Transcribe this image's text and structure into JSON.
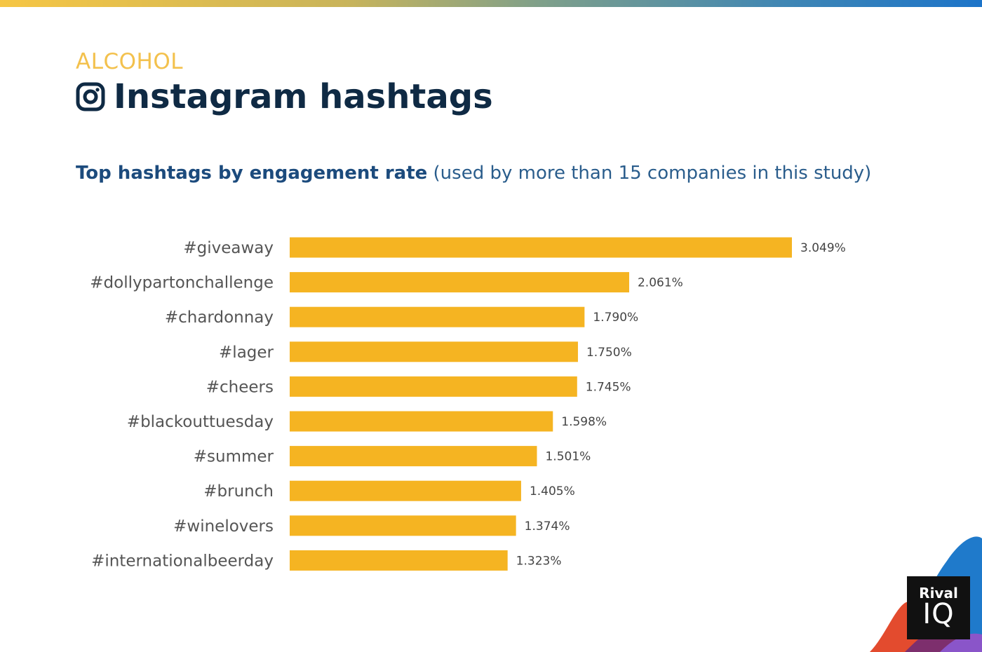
{
  "header": {
    "category": "ALCOHOL",
    "title": "Instagram hashtags",
    "subtitle_bold": "Top hashtags by engagement rate",
    "subtitle_rest": " (used by more than 15 companies in this study)"
  },
  "colors": {
    "bar": "#f5b422",
    "title": "#0f2a44",
    "category": "#f3c14d",
    "subtitle": "#1c4b7d"
  },
  "icons": {
    "title_icon": "instagram-icon"
  },
  "logo": {
    "line1": "Rival",
    "line2": "IQ"
  },
  "chart_data": {
    "type": "bar",
    "orientation": "horizontal",
    "categories": [
      "#giveaway",
      "#dollypartonchallenge",
      "#chardonnay",
      "#lager",
      "#cheers",
      "#blackouttuesday",
      "#summer",
      "#brunch",
      "#winelovers",
      "#internationalbeerday"
    ],
    "values": [
      3.049,
      2.061,
      1.79,
      1.75,
      1.745,
      1.598,
      1.501,
      1.405,
      1.374,
      1.323
    ],
    "value_labels": [
      "3.049%",
      "2.061%",
      "1.790%",
      "1.750%",
      "1.745%",
      "1.598%",
      "1.501%",
      "1.405%",
      "1.374%",
      "1.323%"
    ],
    "title": "Top hashtags by engagement rate",
    "xlabel": "",
    "ylabel": "",
    "xlim": [
      0,
      3.049
    ],
    "grid": false,
    "legend": "none"
  }
}
